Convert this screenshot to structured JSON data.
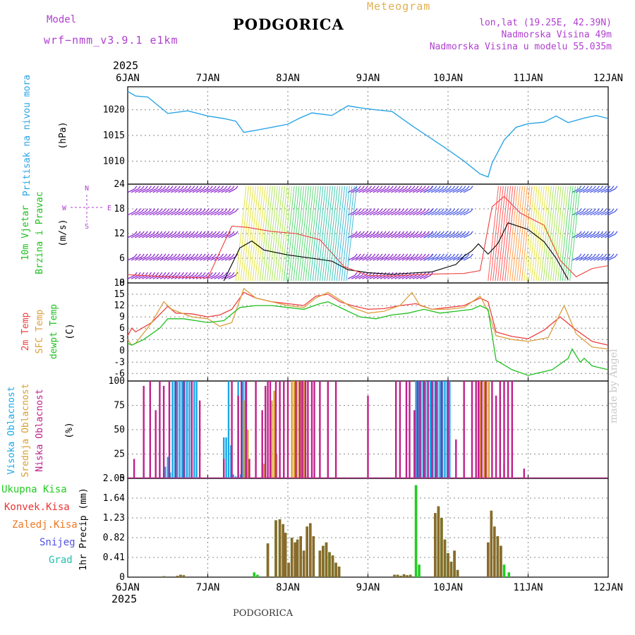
{
  "header": {
    "model_label": "Model",
    "model_name": "wrf−nmm_v3.9.1 e1km",
    "title": "PODGORICA",
    "meteogram_label": "Meteogram",
    "coords": "lon,lat (19.25E, 42.39N)",
    "elevation": "Nadmorska Visina 49m",
    "model_elevation": "Nadmorska Visina u modelu 55.035m",
    "year_top": "2025",
    "year_bottom": "2025",
    "footer": "PODGORICA",
    "watermark": "made by Angel"
  },
  "colors": {
    "pressure": "#29a5e6",
    "t2m": "#ee4040",
    "sfc": "#dca040",
    "dewpt": "#20c020",
    "high_cloud": "#18a8e8",
    "mid_cloud": "#d8a030",
    "low_cloud": "#c0208c",
    "precip_total": "#22cc22",
    "precip_conv": "#ee3333",
    "frozen": "#ee7722",
    "snow": "#5050e0",
    "grad": "#20c0b0",
    "purple_text": "#b040d0",
    "meteogram_text": "#e0b050"
  },
  "chart_data": [
    {
      "type": "line",
      "id": "pressure",
      "ylabel": "Pritisak na nivou mora",
      "unit": "(hPa)",
      "x_ticks": [
        "6JAN",
        "7JAN",
        "8JAN",
        "9JAN",
        "10JAN",
        "11JAN",
        "12JAN"
      ],
      "ylim": [
        1005.5,
        1024.5
      ],
      "yticks": [
        1010,
        1015,
        1020
      ],
      "x_days": [
        0,
        0.1,
        0.25,
        0.5,
        0.75,
        1.0,
        1.2,
        1.35,
        1.45,
        1.6,
        1.8,
        2.0,
        2.15,
        2.3,
        2.55,
        2.75,
        2.9,
        3.1,
        3.3,
        3.55,
        3.8,
        4.0,
        4.2,
        4.4,
        4.5,
        4.55,
        4.7,
        4.85,
        5.0,
        5.2,
        5.35,
        5.5,
        5.7,
        5.85,
        6.0
      ],
      "values": [
        1023.6,
        1022.7,
        1022.5,
        1019.3,
        1019.8,
        1018.8,
        1018.3,
        1017.8,
        1015.6,
        1016.0,
        1016.6,
        1017.2,
        1018.4,
        1019.4,
        1018.9,
        1020.8,
        1020.4,
        1020.0,
        1019.7,
        1016.9,
        1014.3,
        1012.2,
        1010.0,
        1007.5,
        1006.9,
        1009.6,
        1014.1,
        1016.6,
        1017.3,
        1017.6,
        1018.8,
        1017.5,
        1018.4,
        1018.9,
        1018.3
      ],
      "grid": true
    },
    {
      "type": "line",
      "id": "wind",
      "ylabel": "10m Vjetar Brzina i Pravac",
      "unit": "(m/s)",
      "ylim": [
        0,
        24
      ],
      "yticks": [
        0,
        6,
        12,
        18,
        24
      ],
      "compass": [
        "N",
        "W",
        "E",
        "S"
      ],
      "series": [
        {
          "color": "#000000",
          "x_days": [
            1.2,
            1.4,
            1.55,
            1.7,
            2.0,
            2.3,
            2.55,
            2.75,
            3.0,
            3.3,
            3.55,
            3.8,
            4.1,
            4.2,
            4.3,
            4.38,
            4.5,
            4.62,
            4.75,
            5.0,
            5.2,
            5.35,
            5.5
          ],
          "values": [
            0.5,
            8.5,
            10.2,
            8.0,
            6.8,
            6.0,
            5.3,
            3.2,
            2.5,
            2.1,
            2.4,
            2.7,
            4.5,
            6.5,
            7.8,
            9.5,
            7.0,
            9.5,
            14.6,
            13.0,
            10.0,
            6.0,
            0.8
          ]
        },
        {
          "color": "#ee4040",
          "x_days": [
            0,
            0.5,
            1.0,
            1.3,
            1.5,
            1.8,
            2.1,
            2.4,
            2.7,
            3.0,
            3.3,
            3.6,
            3.9,
            4.2,
            4.4,
            4.55,
            4.7,
            4.9,
            5.2,
            5.4,
            5.6,
            5.8,
            6.0
          ],
          "values": [
            2.0,
            1.5,
            1.2,
            13.8,
            13.5,
            12.5,
            12.0,
            10.5,
            4.0,
            1.8,
            1.7,
            2.0,
            2.2,
            2.3,
            3.0,
            18.5,
            21.0,
            17.0,
            14.0,
            5.5,
            1.5,
            3.5,
            4.2
          ]
        }
      ],
      "grid": true
    },
    {
      "type": "line",
      "id": "temperature",
      "ylabel": [
        "2m Temp",
        "SFC Temp",
        "dewpt Temp"
      ],
      "unit": "(C)",
      "ylim": [
        -8,
        18
      ],
      "yticks": [
        -6,
        -3,
        0,
        3,
        6,
        9,
        12,
        15,
        18
      ],
      "series": [
        {
          "name": "2m Temp",
          "color": "#ee4040",
          "x_days": [
            0,
            0.05,
            0.1,
            0.3,
            0.5,
            0.6,
            0.8,
            1.0,
            1.15,
            1.3,
            1.45,
            1.6,
            1.8,
            2.0,
            2.2,
            2.35,
            2.5,
            2.65,
            2.8,
            3.0,
            3.2,
            3.4,
            3.6,
            3.8,
            4.0,
            4.2,
            4.4,
            4.5,
            4.6,
            4.8,
            5.0,
            5.2,
            5.4,
            5.6,
            5.8,
            6.0
          ],
          "values": [
            4.0,
            6.0,
            5.0,
            7.5,
            11.8,
            10.0,
            9.8,
            9.0,
            9.5,
            11.0,
            15.5,
            14.0,
            13.0,
            12.5,
            12.0,
            14.5,
            15.0,
            13.0,
            12.0,
            11.0,
            11.2,
            12.0,
            12.5,
            11.0,
            11.5,
            12.0,
            14.0,
            13.0,
            5.0,
            3.8,
            3.2,
            5.5,
            9.0,
            5.5,
            2.5,
            1.5
          ]
        },
        {
          "name": "SFC Temp",
          "color": "#dca040",
          "x_days": [
            0,
            0.05,
            0.1,
            0.3,
            0.45,
            0.55,
            0.8,
            1.0,
            1.15,
            1.3,
            1.45,
            1.6,
            1.8,
            2.0,
            2.2,
            2.35,
            2.5,
            2.65,
            2.8,
            3.0,
            3.2,
            3.4,
            3.55,
            3.65,
            3.8,
            4.0,
            4.2,
            4.4,
            4.5,
            4.6,
            4.8,
            5.0,
            5.25,
            5.45,
            5.6,
            5.8,
            6.0
          ],
          "values": [
            3.0,
            1.5,
            2.0,
            7.5,
            13.0,
            11.0,
            9.0,
            8.5,
            6.5,
            7.5,
            16.5,
            14.0,
            13.0,
            12.0,
            11.5,
            14.0,
            15.5,
            13.5,
            11.5,
            10.0,
            10.5,
            12.0,
            15.5,
            12.0,
            11.0,
            11.0,
            11.5,
            14.5,
            10.5,
            4.0,
            3.0,
            2.5,
            3.5,
            12.0,
            4.5,
            1.0,
            0.5
          ]
        },
        {
          "name": "dewpt Temp",
          "color": "#20c020",
          "x_days": [
            0,
            0.05,
            0.2,
            0.4,
            0.5,
            0.7,
            1.0,
            1.2,
            1.4,
            1.6,
            1.8,
            2.0,
            2.2,
            2.4,
            2.5,
            2.7,
            2.9,
            3.1,
            3.3,
            3.5,
            3.7,
            3.9,
            4.1,
            4.3,
            4.4,
            4.5,
            4.6,
            4.8,
            5.0,
            5.3,
            5.5,
            5.55,
            5.65,
            5.7,
            5.8,
            6.0
          ],
          "values": [
            2.0,
            1.5,
            3.0,
            6.0,
            8.5,
            8.5,
            7.5,
            8.0,
            11.5,
            12.0,
            12.0,
            11.5,
            11.0,
            12.5,
            13.0,
            11.0,
            9.0,
            8.5,
            9.5,
            10.0,
            11.0,
            10.0,
            10.5,
            11.0,
            12.0,
            11.0,
            -2.5,
            -5.0,
            -6.5,
            -5.0,
            -2.0,
            0.5,
            -3.0,
            -2.0,
            -4.0,
            -5.0
          ]
        }
      ],
      "grid": true
    },
    {
      "type": "bar",
      "id": "clouds",
      "ylabel": [
        "Visoka Oblacnost",
        "Srednja Oblacnost",
        "Niska Oblacnost"
      ],
      "unit": "(%)",
      "ylim": [
        0,
        100
      ],
      "yticks": [
        0,
        25,
        50,
        75,
        100
      ],
      "series": [
        {
          "name": "Visoka Oblacnost",
          "color": "#18a8e8",
          "x_days": [
            0.47,
            0.5,
            0.53,
            0.56,
            0.59,
            0.62,
            0.65,
            0.68,
            0.71,
            0.74,
            0.77,
            0.8,
            0.83,
            0.86,
            1.2,
            1.23,
            1.26,
            1.29,
            1.32,
            1.35,
            1.38,
            1.41,
            1.44,
            1.47,
            3.6,
            3.63,
            3.66,
            3.69,
            3.72,
            3.75,
            3.78,
            3.81,
            3.84,
            3.87,
            3.9,
            3.93,
            3.96,
            3.99,
            4.02
          ],
          "values": [
            12,
            22,
            6,
            100,
            100,
            100,
            100,
            100,
            100,
            100,
            100,
            100,
            100,
            100,
            42,
            42,
            100,
            34,
            4,
            2,
            100,
            4,
            100,
            100,
            100,
            100,
            100,
            100,
            100,
            100,
            100,
            100,
            100,
            100,
            100,
            100,
            100,
            100,
            100
          ]
        },
        {
          "name": "Srednja Oblacnost",
          "color": "#d8a030",
          "x_days": [
            1.45,
            1.5,
            1.7,
            1.8,
            1.83,
            1.86,
            1.95,
            2.05,
            2.08,
            2.11,
            2.14,
            2.17,
            2.2,
            4.4,
            4.45,
            4.48,
            4.51,
            4.7,
            4.75,
            4.8
          ],
          "values": [
            80,
            50,
            15,
            80,
            90,
            25,
            10,
            100,
            100,
            100,
            100,
            100,
            100,
            100,
            100,
            100,
            100,
            15,
            20,
            10
          ]
        },
        {
          "name": "Niska Oblacnost",
          "color": "#c0208c",
          "x_days": [
            0.08,
            0.2,
            0.28,
            0.35,
            0.4,
            0.45,
            0.52,
            0.6,
            0.7,
            0.8,
            0.9,
            1.2,
            1.3,
            1.38,
            1.42,
            1.48,
            1.52,
            1.6,
            1.68,
            1.72,
            1.75,
            1.78,
            1.85,
            1.9,
            1.95,
            2.0,
            2.1,
            2.15,
            2.18,
            2.22,
            2.25,
            2.3,
            2.33,
            2.4,
            2.5,
            2.6,
            3.0,
            3.35,
            3.4,
            3.48,
            3.52,
            3.58,
            3.62,
            3.65,
            3.7,
            3.75,
            3.8,
            3.85,
            3.92,
            4.0,
            4.1,
            4.2,
            4.3,
            4.35,
            4.38,
            4.42,
            4.47,
            4.55,
            4.6,
            4.65,
            4.7,
            4.75,
            4.8,
            4.95,
            5.05,
            5.15,
            5.25,
            5.35,
            5.45,
            5.55,
            5.65,
            5.75,
            5.85,
            5.95
          ],
          "values": [
            20,
            95,
            100,
            70,
            100,
            95,
            100,
            100,
            100,
            100,
            80,
            20,
            100,
            85,
            100,
            100,
            20,
            100,
            70,
            95,
            100,
            100,
            100,
            100,
            100,
            100,
            100,
            100,
            100,
            100,
            100,
            100,
            100,
            100,
            100,
            100,
            85,
            100,
            100,
            100,
            100,
            70,
            100,
            100,
            100,
            100,
            100,
            100,
            100,
            100,
            40,
            100,
            100,
            100,
            100,
            100,
            100,
            100,
            85,
            100,
            100,
            100,
            100,
            10,
            0,
            0,
            0,
            0,
            0,
            0,
            0,
            0,
            0,
            0
          ]
        }
      ],
      "grid": true
    },
    {
      "type": "bar",
      "id": "precip",
      "ylabel": "1hr Precip (mm)",
      "legend": [
        "Ukupna Kisa",
        "Konvek.Kisa",
        "Zaledj.Kisa",
        "Snijeg",
        "Grad"
      ],
      "x_ticks": [
        "6JAN",
        "7JAN",
        "8JAN",
        "9JAN",
        "10JAN",
        "11JAN",
        "12JAN"
      ],
      "ylim": [
        0,
        2.05
      ],
      "yticks": [
        0,
        0.41,
        0.82,
        1.23,
        1.64,
        2.05
      ],
      "tick_labels": [
        "0",
        "0.41",
        "0.82",
        "1.23",
        "1.64",
        "2.05"
      ],
      "series": [
        {
          "name": "Konvek.Kisa",
          "color": "#8a6a2c",
          "x_days": [
            0.45,
            0.62,
            0.66,
            0.7,
            1.75,
            1.85,
            1.9,
            1.94,
            1.97,
            2.01,
            2.05,
            2.09,
            2.12,
            2.16,
            2.2,
            2.24,
            2.28,
            2.32,
            2.4,
            2.44,
            2.48,
            2.52,
            2.56,
            2.6,
            2.64,
            3.33,
            3.37,
            3.41,
            3.45,
            3.49,
            3.53,
            3.84,
            3.88,
            3.92,
            3.96,
            4.0,
            4.04,
            4.08,
            4.12,
            4.5,
            4.54,
            4.58,
            4.62,
            4.66
          ],
          "values": [
            0.02,
            0.03,
            0.05,
            0.04,
            0.7,
            1.18,
            1.2,
            1.1,
            0.92,
            0.3,
            0.82,
            0.72,
            0.78,
            0.85,
            0.55,
            1.05,
            1.12,
            0.85,
            0.55,
            0.65,
            0.72,
            0.52,
            0.45,
            0.3,
            0.22,
            0.05,
            0.05,
            0.03,
            0.06,
            0.04,
            0.05,
            1.33,
            1.47,
            1.23,
            0.78,
            0.5,
            0.32,
            0.55,
            0.15,
            0.72,
            1.38,
            1.05,
            0.85,
            0.65
          ]
        },
        {
          "name": "Ukupna Kisa",
          "color": "#22cc22",
          "x_days": [
            0.45,
            0.62,
            0.66,
            0.7,
            1.58,
            1.62,
            1.75,
            1.85,
            1.9,
            1.94,
            1.97,
            2.01,
            2.05,
            2.09,
            2.12,
            2.16,
            2.2,
            2.24,
            2.28,
            2.32,
            2.4,
            2.44,
            2.48,
            2.52,
            2.56,
            2.6,
            2.64,
            3.33,
            3.37,
            3.41,
            3.45,
            3.49,
            3.53,
            3.6,
            3.64,
            3.84,
            3.88,
            3.92,
            3.96,
            4.0,
            4.04,
            4.08,
            4.12,
            4.5,
            4.54,
            4.58,
            4.62,
            4.66,
            4.7,
            4.76
          ],
          "values": [
            0.02,
            0.03,
            0.05,
            0.04,
            0.1,
            0.05,
            0.7,
            1.18,
            1.2,
            1.1,
            0.92,
            0.3,
            0.82,
            0.72,
            0.78,
            0.85,
            0.55,
            1.05,
            1.12,
            0.85,
            0.55,
            0.65,
            0.72,
            0.52,
            0.45,
            0.3,
            0.22,
            0.05,
            0.05,
            0.03,
            0.06,
            0.04,
            0.05,
            1.91,
            0.26,
            1.33,
            1.47,
            1.23,
            0.78,
            0.5,
            0.32,
            0.55,
            0.15,
            0.72,
            1.38,
            1.05,
            0.85,
            0.65,
            0.26,
            0.1
          ]
        }
      ],
      "grid": true
    }
  ]
}
